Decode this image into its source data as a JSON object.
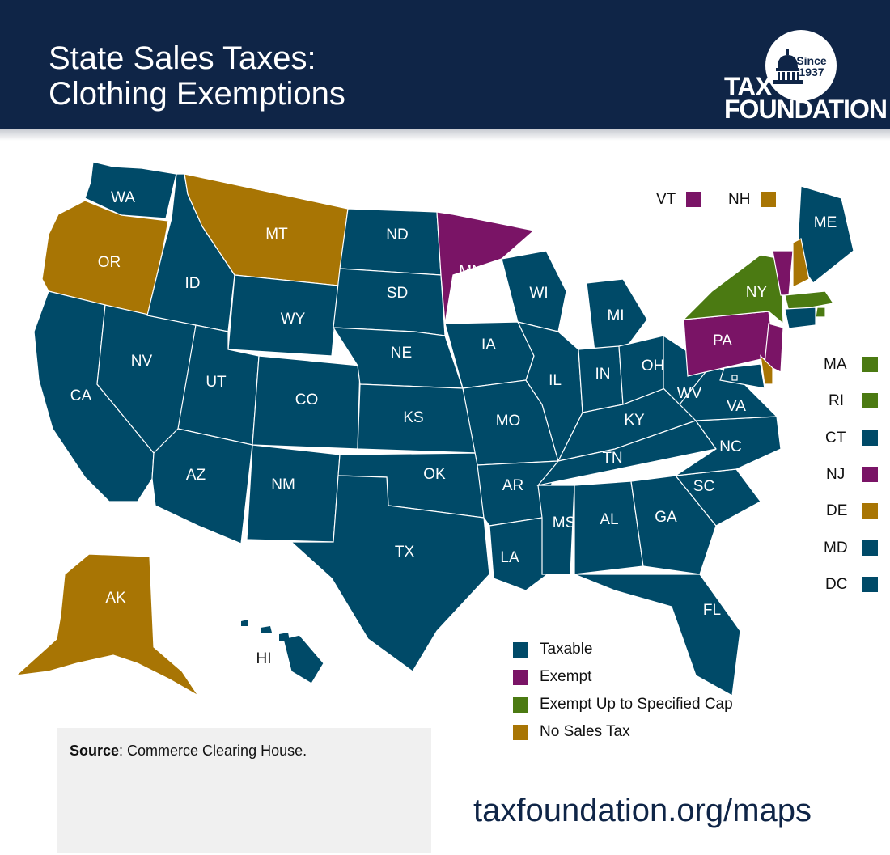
{
  "header": {
    "title_line1": "State Sales Taxes:",
    "title_line2": "Clothing Exemptions",
    "logo_line1": "TAX",
    "logo_line2": "FOUNDATION",
    "logo_since": "Since",
    "logo_year": "1937"
  },
  "colors": {
    "taxable": "#004a68",
    "exempt": "#7a1466",
    "exempt_cap": "#4b7a12",
    "no_tax": "#a87504",
    "header": "#0f2547"
  },
  "map": {
    "states": [
      {
        "abbr": "WA",
        "category": "taxable"
      },
      {
        "abbr": "OR",
        "category": "no_tax"
      },
      {
        "abbr": "CA",
        "category": "taxable"
      },
      {
        "abbr": "NV",
        "category": "taxable"
      },
      {
        "abbr": "ID",
        "category": "taxable"
      },
      {
        "abbr": "MT",
        "category": "no_tax"
      },
      {
        "abbr": "WY",
        "category": "taxable"
      },
      {
        "abbr": "UT",
        "category": "taxable"
      },
      {
        "abbr": "CO",
        "category": "taxable"
      },
      {
        "abbr": "AZ",
        "category": "taxable"
      },
      {
        "abbr": "NM",
        "category": "taxable"
      },
      {
        "abbr": "ND",
        "category": "taxable"
      },
      {
        "abbr": "SD",
        "category": "taxable"
      },
      {
        "abbr": "NE",
        "category": "taxable"
      },
      {
        "abbr": "KS",
        "category": "taxable"
      },
      {
        "abbr": "OK",
        "category": "taxable"
      },
      {
        "abbr": "TX",
        "category": "taxable"
      },
      {
        "abbr": "MN",
        "category": "exempt"
      },
      {
        "abbr": "IA",
        "category": "taxable"
      },
      {
        "abbr": "MO",
        "category": "taxable"
      },
      {
        "abbr": "AR",
        "category": "taxable"
      },
      {
        "abbr": "LA",
        "category": "taxable"
      },
      {
        "abbr": "WI",
        "category": "taxable"
      },
      {
        "abbr": "IL",
        "category": "taxable"
      },
      {
        "abbr": "MI",
        "category": "taxable"
      },
      {
        "abbr": "IN",
        "category": "taxable"
      },
      {
        "abbr": "OH",
        "category": "taxable"
      },
      {
        "abbr": "KY",
        "category": "taxable"
      },
      {
        "abbr": "TN",
        "category": "taxable"
      },
      {
        "abbr": "MS",
        "category": "taxable"
      },
      {
        "abbr": "AL",
        "category": "taxable"
      },
      {
        "abbr": "GA",
        "category": "taxable"
      },
      {
        "abbr": "FL",
        "category": "taxable"
      },
      {
        "abbr": "SC",
        "category": "taxable"
      },
      {
        "abbr": "NC",
        "category": "taxable"
      },
      {
        "abbr": "VA",
        "category": "taxable"
      },
      {
        "abbr": "WV",
        "category": "taxable"
      },
      {
        "abbr": "PA",
        "category": "exempt"
      },
      {
        "abbr": "NY",
        "category": "exempt_cap"
      },
      {
        "abbr": "ME",
        "category": "taxable"
      },
      {
        "abbr": "AK",
        "category": "no_tax"
      },
      {
        "abbr": "HI",
        "category": "taxable"
      }
    ],
    "small_states": [
      {
        "abbr": "VT",
        "category": "exempt"
      },
      {
        "abbr": "NH",
        "category": "no_tax"
      },
      {
        "abbr": "MA",
        "category": "exempt_cap"
      },
      {
        "abbr": "RI",
        "category": "exempt_cap"
      },
      {
        "abbr": "CT",
        "category": "taxable"
      },
      {
        "abbr": "NJ",
        "category": "exempt"
      },
      {
        "abbr": "DE",
        "category": "no_tax"
      },
      {
        "abbr": "MD",
        "category": "taxable"
      },
      {
        "abbr": "DC",
        "category": "taxable"
      }
    ]
  },
  "legend": [
    {
      "label": "Taxable",
      "category": "taxable"
    },
    {
      "label": "Exempt",
      "category": "exempt"
    },
    {
      "label": "Exempt Up to Specified Cap",
      "category": "exempt_cap"
    },
    {
      "label": "No Sales Tax",
      "category": "no_tax"
    }
  ],
  "source": {
    "label": "Source",
    "text": ": Commerce Clearing House."
  },
  "url": "taxfoundation.org/maps"
}
